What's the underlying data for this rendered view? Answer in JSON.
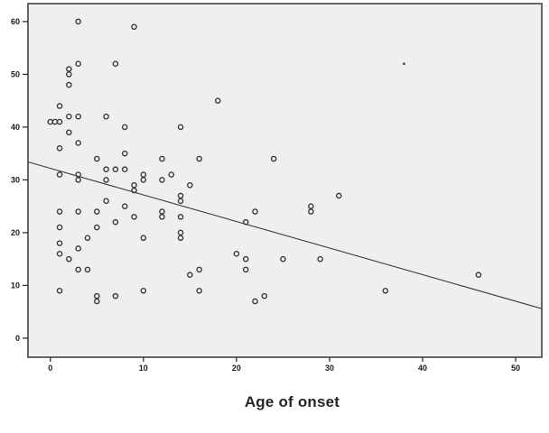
{
  "figure": {
    "xlabel": "Age of onset"
  },
  "colors": {
    "page_bg": "#ffffff",
    "plot_bg": "#efeff0",
    "plot_border": "#565656",
    "marker": "#3a3a3a",
    "fit_line": "#3c3c3c",
    "tick": "#2f2f2f",
    "tick_label": "#1a1a1a",
    "title": "#262626"
  },
  "chart_data": {
    "type": "scatter",
    "title": "",
    "xlabel": "Age of onset",
    "ylabel": "",
    "x_ticks": [
      0,
      10,
      20,
      30,
      40,
      50
    ],
    "y_ticks": [
      0,
      10,
      20,
      30,
      40,
      50,
      60
    ],
    "xlim": [
      -2.4,
      52.8
    ],
    "ylim": [
      -3.6,
      63.4
    ],
    "grid": false,
    "legend": "none",
    "marker_style": "open-circle",
    "points": [
      [
        3,
        60
      ],
      [
        9,
        59
      ],
      [
        3,
        52
      ],
      [
        7,
        52
      ],
      [
        2,
        51
      ],
      [
        2,
        50
      ],
      [
        2,
        48
      ],
      [
        18,
        45
      ],
      [
        1,
        44
      ],
      [
        3,
        42
      ],
      [
        6,
        42
      ],
      [
        2,
        42
      ],
      [
        0,
        41
      ],
      [
        0.5,
        41
      ],
      [
        1,
        41
      ],
      [
        8,
        40
      ],
      [
        14,
        40
      ],
      [
        2,
        39
      ],
      [
        3,
        37
      ],
      [
        1,
        36
      ],
      [
        8,
        35
      ],
      [
        5,
        34
      ],
      [
        12,
        34
      ],
      [
        16,
        34
      ],
      [
        24,
        34
      ],
      [
        6,
        32
      ],
      [
        7,
        32
      ],
      [
        8,
        32
      ],
      [
        1,
        31
      ],
      [
        3,
        31
      ],
      [
        10,
        31
      ],
      [
        13,
        31
      ],
      [
        3,
        30
      ],
      [
        6,
        30
      ],
      [
        10,
        30
      ],
      [
        12,
        30
      ],
      [
        15,
        29
      ],
      [
        9,
        29
      ],
      [
        9,
        28
      ],
      [
        14,
        27
      ],
      [
        14,
        26
      ],
      [
        31,
        27
      ],
      [
        6,
        26
      ],
      [
        28,
        25
      ],
      [
        8,
        25
      ],
      [
        28,
        24
      ],
      [
        22,
        24
      ],
      [
        1,
        24
      ],
      [
        3,
        24
      ],
      [
        5,
        24
      ],
      [
        12,
        24
      ],
      [
        12,
        23
      ],
      [
        14,
        23
      ],
      [
        9,
        23
      ],
      [
        7,
        22
      ],
      [
        21,
        22
      ],
      [
        5,
        21
      ],
      [
        1,
        21
      ],
      [
        14,
        20
      ],
      [
        4,
        19
      ],
      [
        10,
        19
      ],
      [
        14,
        19
      ],
      [
        1,
        18
      ],
      [
        3,
        17
      ],
      [
        20,
        16
      ],
      [
        1,
        16
      ],
      [
        2,
        15
      ],
      [
        21,
        15
      ],
      [
        25,
        15
      ],
      [
        29,
        15
      ],
      [
        3,
        13
      ],
      [
        4,
        13
      ],
      [
        16,
        13
      ],
      [
        21,
        13
      ],
      [
        15,
        12
      ],
      [
        46,
        12
      ],
      [
        1,
        9
      ],
      [
        10,
        9
      ],
      [
        16,
        9
      ],
      [
        36,
        9
      ],
      [
        5,
        8
      ],
      [
        7,
        8
      ],
      [
        23,
        8
      ],
      [
        5,
        7
      ],
      [
        22,
        7
      ]
    ],
    "small_dot_point": [
      38,
      52
    ],
    "fit_line": {
      "x1": -2.4,
      "y1": 33.4,
      "x2": 52.8,
      "y2": 5.6
    }
  }
}
